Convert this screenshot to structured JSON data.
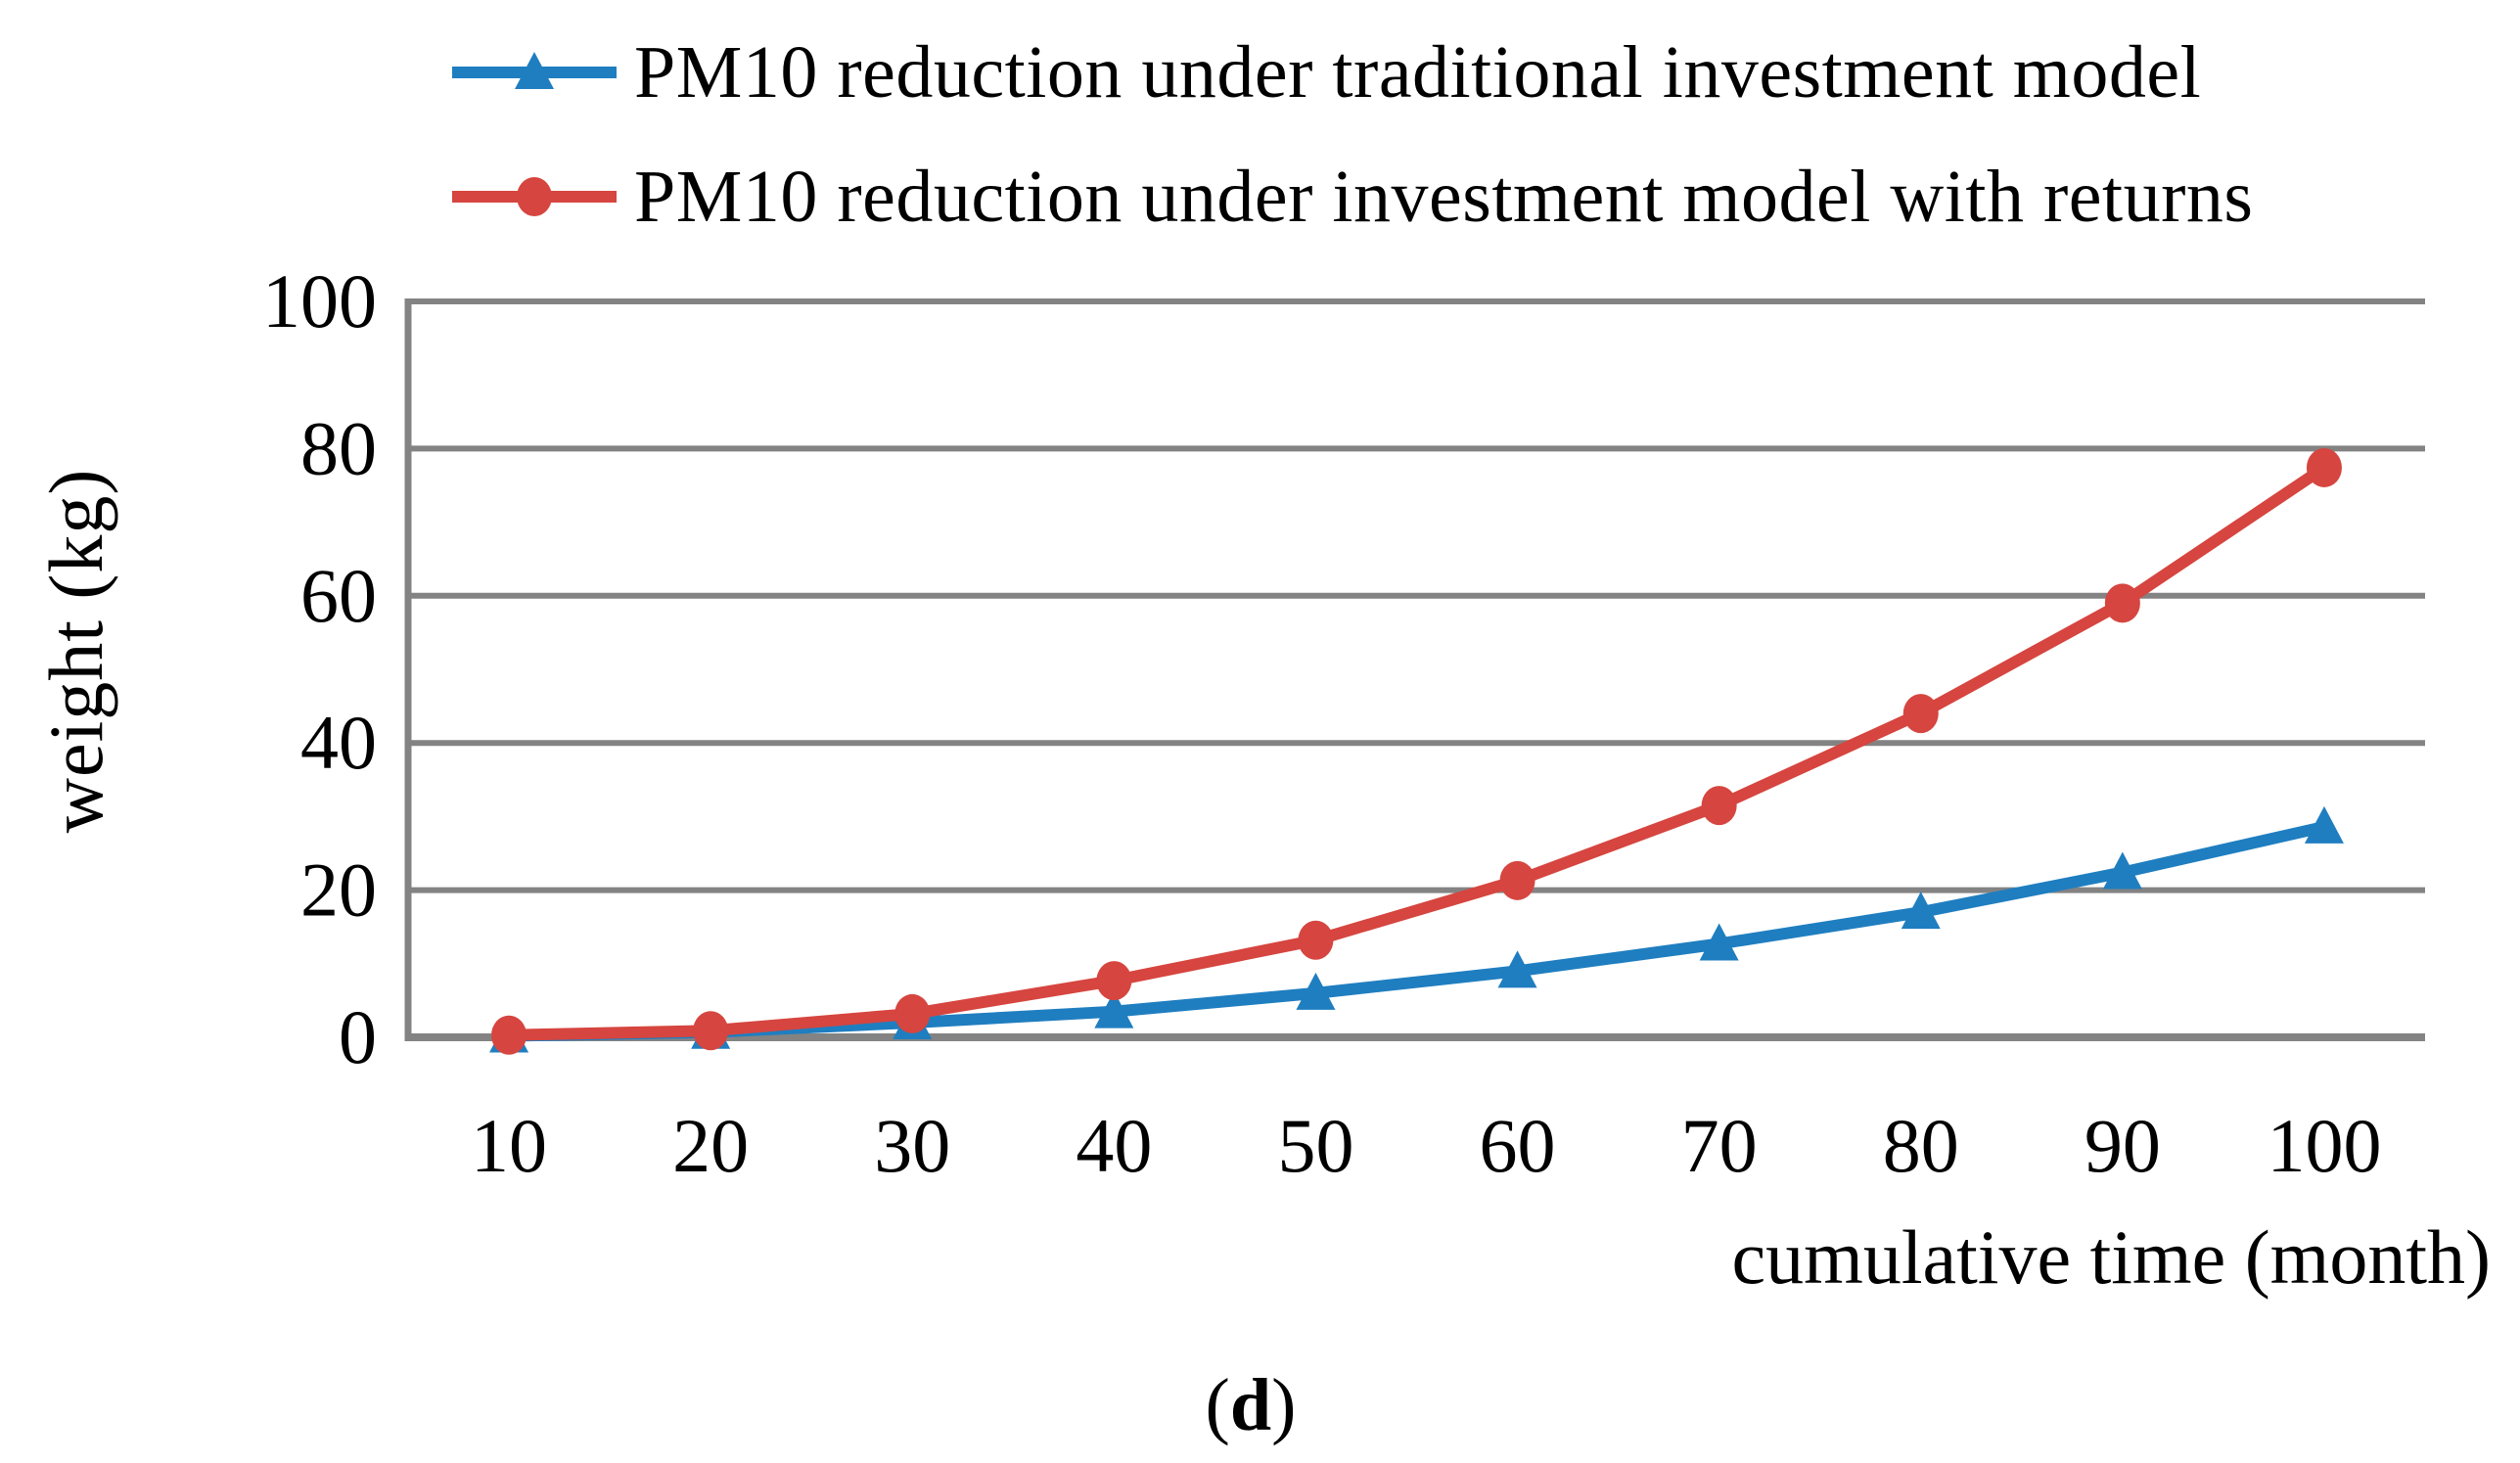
{
  "colors": {
    "series_traditional": "#1F7EC0",
    "series_returns": "#D6453F",
    "grid": "#838383",
    "text": "#000000",
    "background": "#FFFFFF"
  },
  "axes": {
    "y_title": "weight (kg)",
    "x_title": "cumulative time (month)",
    "y_ticks": [
      0,
      20,
      40,
      60,
      80,
      100
    ]
  },
  "caption": {
    "open": "(",
    "letter": "d",
    "close": ")"
  },
  "chart_data": {
    "type": "line",
    "title": "",
    "xlabel": "cumulative time (month)",
    "ylabel": "weight (kg)",
    "categories": [
      10,
      20,
      30,
      40,
      50,
      60,
      70,
      80,
      90,
      100
    ],
    "ylim": [
      0,
      100
    ],
    "grid": true,
    "legend_position": "top-left",
    "series": [
      {
        "name": "PM10 reduction under traditional investment model",
        "color": "#1F7EC0",
        "marker": "triangle",
        "values": [
          0.2,
          0.7,
          2.0,
          3.5,
          6.0,
          9.0,
          12.7,
          17.0,
          22.4,
          28.6
        ]
      },
      {
        "name": "PM10 reduction under investment model with returns",
        "color": "#D6453F",
        "marker": "circle",
        "values": [
          0.3,
          0.9,
          3.2,
          7.7,
          13.2,
          21.3,
          31.5,
          44.0,
          59.0,
          77.4
        ]
      }
    ]
  }
}
